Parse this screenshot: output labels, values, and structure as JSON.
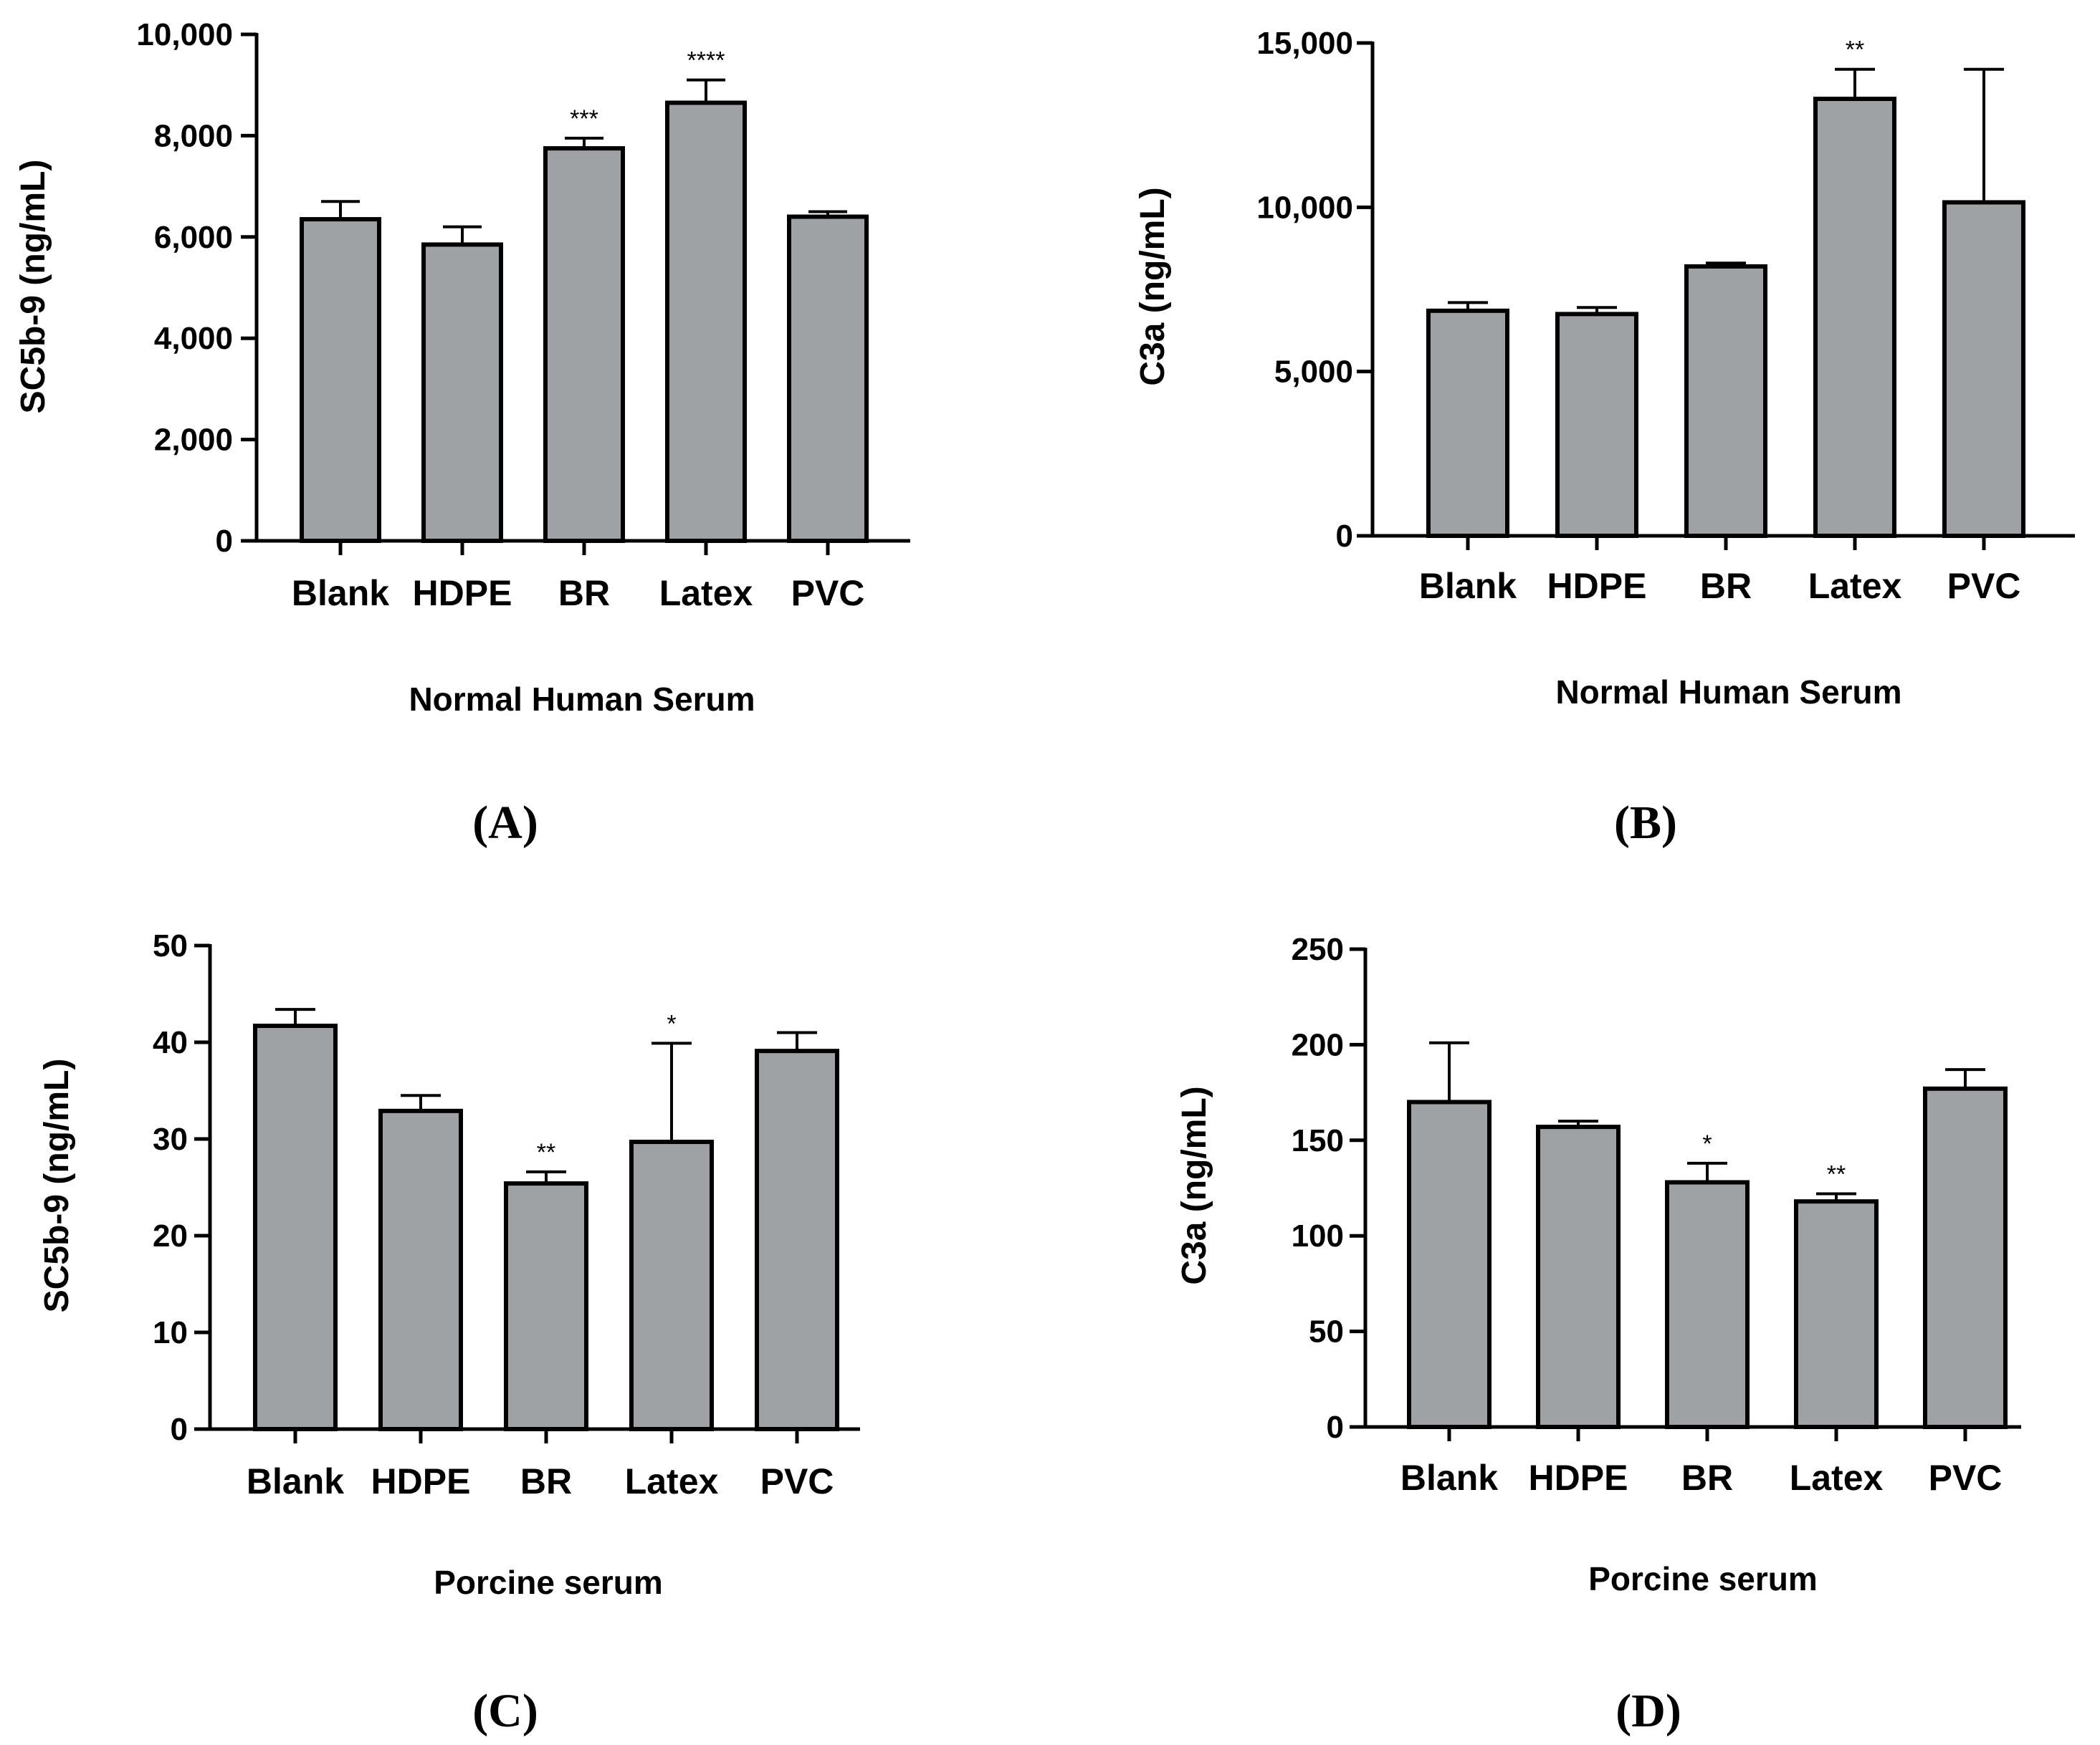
{
  "chart_data": [
    {
      "type": "bar",
      "panel": "(A)",
      "categories": [
        "Blank",
        "HDPE",
        "BR",
        "Latex",
        "PVC"
      ],
      "values": [
        6350,
        5850,
        7750,
        8650,
        6400
      ],
      "error_plus": [
        6700,
        6200,
        7950,
        9100,
        6500
      ],
      "significance": [
        "",
        "",
        "***",
        "****",
        ""
      ],
      "ylabel": "SC5b-9 (ng/mL)",
      "xlabel": "Normal Human Serum",
      "ylim": [
        0,
        10000
      ],
      "yticks": [
        0,
        2000,
        4000,
        6000,
        8000,
        10000
      ],
      "ytick_labels": [
        "0",
        "2,000",
        "4,000",
        "6,000",
        "8,000",
        "10,000"
      ]
    },
    {
      "type": "bar",
      "panel": "(B)",
      "categories": [
        "Blank",
        "HDPE",
        "BR",
        "Latex",
        "PVC"
      ],
      "values": [
        6850,
        6750,
        8200,
        13300,
        10150
      ],
      "error_plus": [
        7100,
        6950,
        8300,
        14200,
        14200
      ],
      "significance": [
        "",
        "",
        "",
        "**",
        ""
      ],
      "ylabel": "C3a (ng/mL)",
      "xlabel": "Normal Human Serum",
      "ylim": [
        0,
        15000
      ],
      "yticks": [
        0,
        5000,
        10000,
        15000
      ],
      "ytick_labels": [
        "0",
        "5,000",
        "10,000",
        "15,000"
      ]
    },
    {
      "type": "bar",
      "panel": "(C)",
      "categories": [
        "Blank",
        "HDPE",
        "BR",
        "Latex",
        "PVC"
      ],
      "values": [
        41.7,
        32.9,
        25.4,
        29.7,
        39.1
      ],
      "error_plus": [
        43.4,
        34.5,
        26.6,
        39.9,
        41.0
      ],
      "significance": [
        "",
        "",
        "**",
        "*",
        ""
      ],
      "ylabel": "SC5b-9 (ng/mL)",
      "xlabel": "Porcine serum",
      "ylim": [
        0,
        50
      ],
      "yticks": [
        0,
        10,
        20,
        30,
        40,
        50
      ],
      "ytick_labels": [
        "0",
        "10",
        "20",
        "30",
        "40",
        "50"
      ]
    },
    {
      "type": "bar",
      "panel": "(D)",
      "categories": [
        "Blank",
        "HDPE",
        "BR",
        "Latex",
        "PVC"
      ],
      "values": [
        170,
        157,
        128,
        118,
        177
      ],
      "error_plus": [
        201,
        160,
        138,
        122,
        187
      ],
      "significance": [
        "",
        "",
        "*",
        "**",
        ""
      ],
      "ylabel": "C3a (ng/mL)",
      "xlabel": "Porcine serum",
      "ylim": [
        0,
        250
      ],
      "yticks": [
        0,
        50,
        100,
        150,
        200,
        250
      ],
      "ytick_labels": [
        "0",
        "50",
        "100",
        "150",
        "200",
        "250"
      ]
    }
  ],
  "colors": {
    "bar_fill": "#a0a1a5",
    "stroke": "#000000"
  }
}
